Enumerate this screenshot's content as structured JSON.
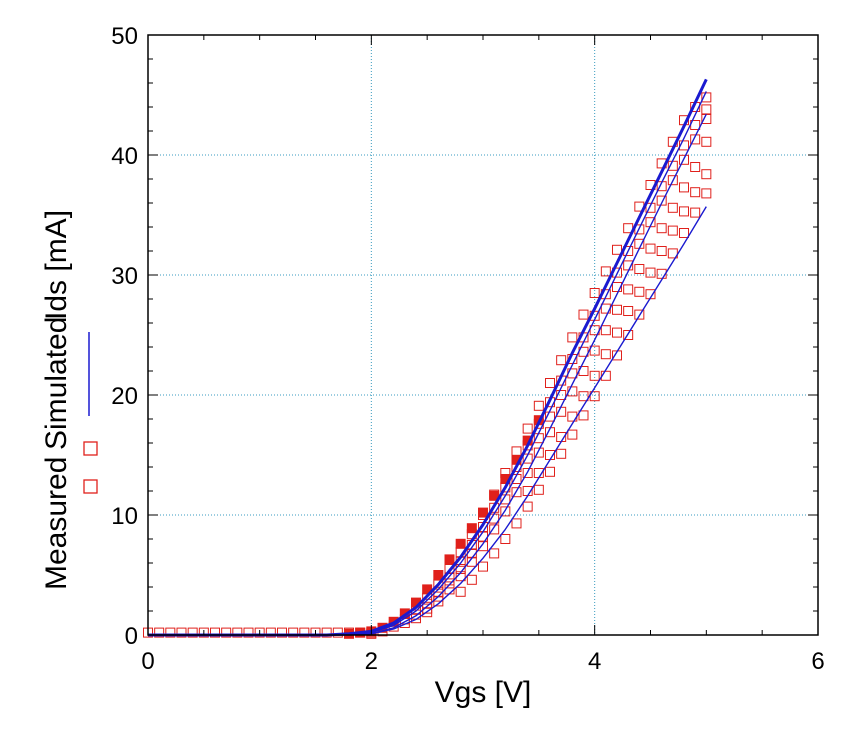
{
  "chart_data": {
    "type": "scatter",
    "xlabel": "Vgs [V]",
    "ylabel": "Ids [mA]",
    "xlim": [
      0,
      6
    ],
    "ylim": [
      0,
      50
    ],
    "xticks": [
      0,
      2,
      4,
      6
    ],
    "yticks": [
      0,
      10,
      20,
      30,
      40,
      50
    ],
    "grid": true,
    "legend_position": "left, rotated alongside y-axis title",
    "legend": [
      {
        "label": "Measured",
        "marker": "square-open",
        "color": "#e0201b"
      },
      {
        "label": "Simulated",
        "marker": "line",
        "color": "#1a1ad0"
      }
    ],
    "series": [
      {
        "name": "Simulated",
        "kind": "line",
        "color": "#1a1ad0",
        "x": [
          0,
          1.6,
          1.8,
          2.0,
          2.2,
          2.4,
          2.6,
          2.8,
          3.0,
          3.2,
          3.4,
          3.6,
          3.8,
          4.0,
          4.2,
          4.4,
          4.6,
          4.8,
          5.0
        ],
        "y": [
          0,
          0,
          0.1,
          0.3,
          1.0,
          2.3,
          4.2,
          6.5,
          9.2,
          12.3,
          15.8,
          19.6,
          23.5,
          27.2,
          31.0,
          34.8,
          38.6,
          42.4,
          46.3
        ]
      },
      {
        "name": "Simulated",
        "kind": "line",
        "color": "#1a1ad0",
        "x": [
          0,
          1.7,
          2.0,
          2.2,
          2.4,
          2.6,
          2.8,
          3.0,
          3.2,
          3.4,
          3.6,
          3.8,
          4.0,
          4.2,
          4.4,
          4.6,
          4.8,
          5.0
        ],
        "y": [
          0,
          0,
          0.2,
          0.8,
          2.0,
          3.8,
          6.0,
          8.6,
          11.6,
          15.0,
          18.7,
          22.5,
          26.3,
          30.1,
          33.9,
          37.7,
          41.4,
          45.3
        ]
      },
      {
        "name": "Simulated",
        "kind": "line",
        "color": "#1a1ad0",
        "x": [
          0,
          1.7,
          2.0,
          2.2,
          2.4,
          2.6,
          2.8,
          3.0,
          3.2,
          3.4,
          3.6,
          3.8,
          4.0,
          4.2,
          4.4,
          4.6,
          4.8,
          5.0
        ],
        "y": [
          0,
          0,
          0.1,
          0.6,
          1.6,
          3.2,
          5.2,
          7.6,
          10.4,
          13.6,
          17.2,
          20.9,
          24.6,
          28.4,
          32.2,
          36.0,
          39.7,
          43.4
        ]
      },
      {
        "name": "Simulated",
        "kind": "line",
        "color": "#1a1ad0",
        "x": [
          0,
          1.8,
          2.0,
          2.2,
          2.4,
          2.6,
          2.8,
          3.0,
          3.2,
          3.4,
          3.6,
          3.8,
          4.0,
          4.2,
          4.4,
          4.6,
          4.8,
          5.0
        ],
        "y": [
          0,
          0,
          0.1,
          0.5,
          1.3,
          2.6,
          4.3,
          6.4,
          8.8,
          11.6,
          14.6,
          17.6,
          20.6,
          23.6,
          26.6,
          29.6,
          32.6,
          35.7
        ]
      },
      {
        "name": "Measured",
        "kind": "markers",
        "marker": "square-filled",
        "color": "#e0201b",
        "x": [
          1.8,
          1.9,
          2.0,
          2.1,
          2.2,
          2.3,
          2.4,
          2.5,
          2.6,
          2.7,
          2.8,
          2.9,
          3.0,
          3.1,
          3.2,
          3.3,
          3.4,
          3.5
        ],
        "y": [
          0.1,
          0.2,
          0.3,
          0.6,
          1.1,
          1.8,
          2.7,
          3.8,
          5.0,
          6.3,
          7.6,
          8.9,
          10.2,
          11.6,
          13.0,
          14.6,
          16.2,
          17.9
        ]
      },
      {
        "name": "Measured",
        "kind": "markers",
        "marker": "square-open",
        "color": "#e0201b",
        "x": [
          0,
          0.1,
          0.2,
          0.3,
          0.4,
          0.5,
          0.6,
          0.7,
          0.8,
          0.9,
          1.0,
          1.1,
          1.2,
          1.3,
          1.4,
          1.5,
          1.6,
          1.7,
          1.8,
          1.9,
          2.0
        ],
        "y": [
          0.2,
          0.2,
          0.2,
          0.2,
          0.2,
          0.2,
          0.2,
          0.2,
          0.2,
          0.2,
          0.2,
          0.2,
          0.2,
          0.2,
          0.2,
          0.2,
          0.2,
          0.2,
          0.2,
          0.2,
          0.2
        ]
      },
      {
        "name": "Measured",
        "kind": "markers",
        "marker": "square-open",
        "color": "#e0201b",
        "x": [
          2.0,
          2.1,
          2.2,
          2.3,
          2.4,
          2.5,
          2.6,
          2.7,
          2.8,
          2.9,
          3.0,
          3.1,
          3.2,
          3.3,
          3.4,
          3.5,
          3.6,
          3.7,
          3.8,
          3.9,
          4.0,
          4.1,
          4.2,
          4.3,
          4.4,
          4.5,
          4.6,
          4.7,
          4.8,
          4.9,
          5.0
        ],
        "y": [
          0.1,
          0.3,
          0.7,
          1.3,
          2.1,
          3.1,
          4.2,
          5.5,
          6.9,
          8.4,
          10.0,
          11.7,
          13.5,
          15.3,
          17.2,
          19.1,
          21.0,
          22.9,
          24.8,
          26.7,
          28.5,
          30.3,
          32.1,
          33.9,
          35.7,
          37.5,
          39.3,
          41.1,
          42.9,
          44.0,
          44.8
        ]
      },
      {
        "name": "Measured",
        "kind": "markers",
        "marker": "square-open",
        "color": "#e0201b",
        "x": [
          2.3,
          2.4,
          2.5,
          2.6,
          2.7,
          2.8,
          2.9,
          3.0,
          3.1,
          3.2,
          3.3,
          3.4,
          3.5,
          3.6,
          3.7,
          3.8,
          3.9,
          4.0,
          4.1,
          4.2,
          4.3,
          4.4,
          4.5,
          4.6,
          4.7,
          4.8,
          4.9,
          5.0
        ],
        "y": [
          1.0,
          1.7,
          2.6,
          3.6,
          4.8,
          6.1,
          7.5,
          9.0,
          10.6,
          12.3,
          14.0,
          15.8,
          17.6,
          19.4,
          21.2,
          23.0,
          24.8,
          26.6,
          28.4,
          30.2,
          32.0,
          33.8,
          35.6,
          37.4,
          39.1,
          40.8,
          42.5,
          43.8
        ]
      },
      {
        "name": "Measured",
        "kind": "markers",
        "marker": "square-open",
        "color": "#e0201b",
        "x": [
          2.4,
          2.5,
          2.6,
          2.7,
          2.8,
          2.9,
          3.0,
          3.1,
          3.2,
          3.3,
          3.4,
          3.5,
          3.6,
          3.7,
          3.8,
          3.9,
          4.0,
          4.1,
          4.2,
          4.3,
          4.4,
          4.5,
          4.6,
          4.7,
          4.8,
          4.9,
          5.0
        ],
        "y": [
          1.4,
          2.2,
          3.2,
          4.3,
          5.5,
          6.8,
          8.2,
          9.7,
          11.3,
          13.0,
          14.7,
          16.4,
          18.2,
          20.0,
          21.8,
          23.6,
          25.4,
          27.2,
          29.0,
          30.8,
          32.6,
          34.4,
          36.2,
          37.9,
          39.6,
          41.3,
          43.0
        ]
      },
      {
        "name": "Measured",
        "kind": "markers",
        "marker": "square-open",
        "color": "#e0201b",
        "x": [
          2.5,
          2.6,
          2.7,
          2.8,
          2.9,
          3.0,
          3.1,
          3.2,
          3.3,
          3.4,
          3.5,
          3.6,
          3.7,
          3.8,
          3.9,
          4.0,
          4.1,
          4.2,
          4.3,
          4.4,
          4.5,
          4.6,
          4.7,
          4.8,
          4.9,
          5.0
        ],
        "y": [
          1.9,
          2.8,
          3.8,
          4.9,
          6.1,
          7.4,
          8.8,
          10.3,
          11.9,
          13.5,
          15.2,
          16.9,
          18.6,
          20.3,
          22.0,
          23.7,
          25.4,
          27.1,
          28.8,
          30.5,
          32.2,
          33.9,
          35.6,
          37.3,
          39.0,
          41.1
        ]
      },
      {
        "name": "Measured",
        "kind": "markers",
        "marker": "square-open",
        "color": "#e0201b",
        "x": [
          2.8,
          2.9,
          3.0,
          3.1,
          3.2,
          3.3,
          3.4,
          3.5,
          3.6,
          3.7,
          3.8,
          3.9,
          4.0,
          4.1,
          4.2,
          4.3,
          4.4,
          4.5,
          4.6,
          4.7,
          4.8,
          4.9,
          5.0
        ],
        "y": [
          3.6,
          4.6,
          5.7,
          6.8,
          8.0,
          9.3,
          10.7,
          12.1,
          13.6,
          15.1,
          16.7,
          18.3,
          19.9,
          21.6,
          23.3,
          25.0,
          26.7,
          28.4,
          30.1,
          31.8,
          33.5,
          35.2,
          36.8
        ]
      },
      {
        "name": "Measured",
        "kind": "markers",
        "marker": "square-open",
        "color": "#e0201b",
        "x": [
          3.4,
          3.5,
          3.6,
          3.7,
          3.8,
          3.9,
          4.0,
          4.1,
          4.2,
          4.3,
          4.4,
          4.5,
          4.6,
          4.7,
          4.8,
          4.9,
          5.0
        ],
        "y": [
          12.0,
          13.5,
          15.0,
          16.5,
          18.2,
          19.9,
          21.6,
          23.4,
          25.2,
          27.0,
          28.6,
          30.2,
          32.0,
          33.7,
          35.3,
          36.9,
          38.4
        ]
      }
    ]
  }
}
